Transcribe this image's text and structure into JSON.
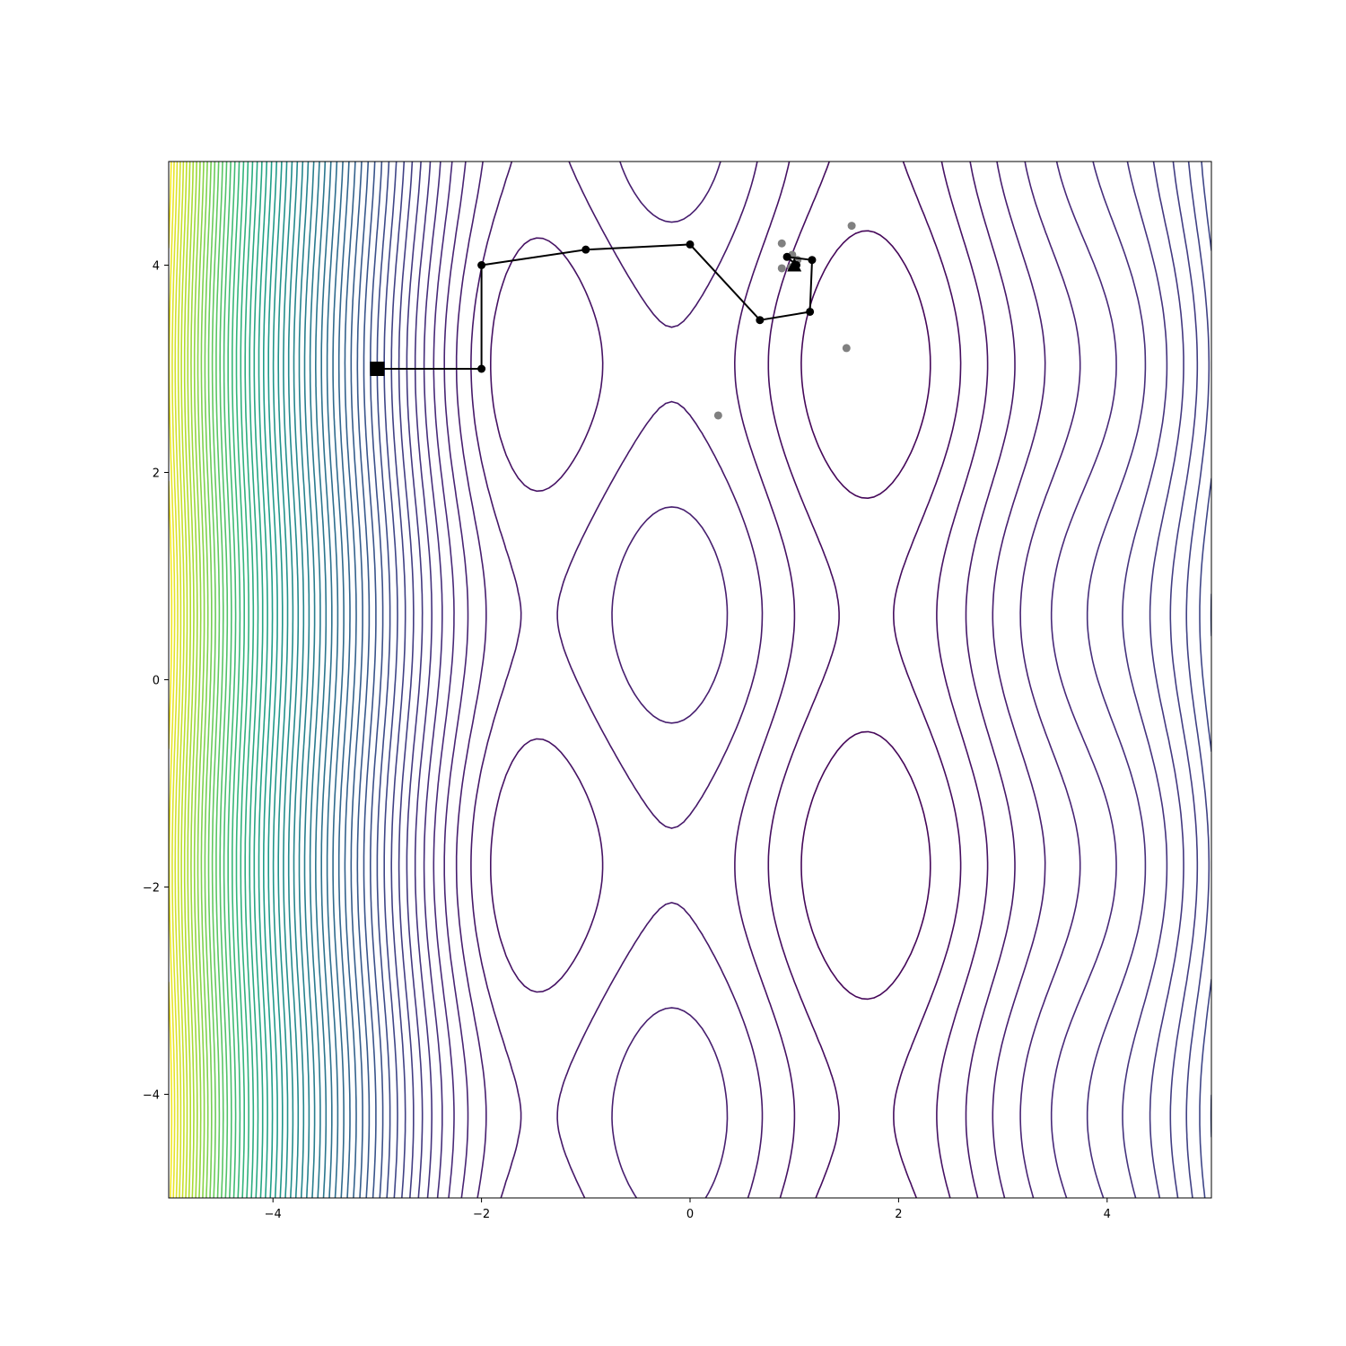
{
  "chart_data": {
    "type": "contour",
    "title": "",
    "xlabel": "",
    "ylabel": "",
    "xlim": [
      -5,
      5
    ],
    "ylim": [
      -5,
      5
    ],
    "xticks": [
      -4,
      -2,
      0,
      2,
      4
    ],
    "yticks": [
      -4,
      -2,
      0,
      2,
      4
    ],
    "xtick_labels": [
      "−4",
      "−2",
      "0",
      "2",
      "4"
    ],
    "ytick_labels": [
      "−4",
      "−2",
      "0",
      "2",
      "4"
    ],
    "colormap": [
      "#440154",
      "#482878",
      "#3e4989",
      "#31688e",
      "#26828e",
      "#1f9e89",
      "#35b779",
      "#6ece58",
      "#b5de2b",
      "#fde725"
    ],
    "levels": 60,
    "minimum_region": "upper-middle",
    "optimizer_path": {
      "color": "#000000",
      "start_marker": "square",
      "end_marker": "triangle",
      "points": [
        {
          "x": -3.0,
          "y": 3.0
        },
        {
          "x": -2.0,
          "y": 3.0
        },
        {
          "x": -2.0,
          "y": 4.0
        },
        {
          "x": -1.0,
          "y": 4.15
        },
        {
          "x": 0.0,
          "y": 4.2
        },
        {
          "x": 0.67,
          "y": 3.47
        },
        {
          "x": 1.15,
          "y": 3.55
        },
        {
          "x": 1.17,
          "y": 4.05
        },
        {
          "x": 0.93,
          "y": 4.08
        },
        {
          "x": 1.02,
          "y": 4.0
        },
        {
          "x": 1.0,
          "y": 4.0
        }
      ]
    },
    "sample_points": {
      "color": "#808080",
      "points": [
        {
          "x": 1.55,
          "y": 4.38
        },
        {
          "x": 0.88,
          "y": 4.21
        },
        {
          "x": 0.88,
          "y": 3.97
        },
        {
          "x": 1.5,
          "y": 3.2
        },
        {
          "x": 0.27,
          "y": 2.55
        },
        {
          "x": 0.98,
          "y": 4.1
        },
        {
          "x": 1.03,
          "y": 4.05
        },
        {
          "x": 0.97,
          "y": 3.98
        }
      ]
    }
  }
}
